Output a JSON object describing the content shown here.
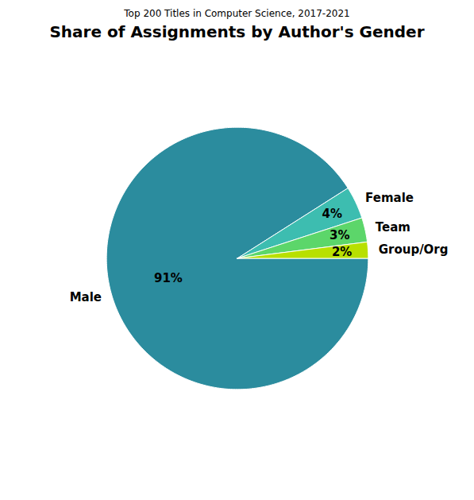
{
  "chart_data": {
    "type": "pie",
    "title": "Share of Assignments by Author's Gender",
    "subtitle": "Top 200 Titles in Computer Science, 2017-2021",
    "categories": [
      "Male",
      "Female",
      "Team",
      "Group/Org"
    ],
    "values": [
      91,
      4,
      3,
      2
    ],
    "value_labels": [
      "91%",
      "4%",
      "3%",
      "2%"
    ],
    "colors": [
      "#2b8c9e",
      "#3dbdb0",
      "#5cd66a",
      "#b8e000"
    ],
    "data_labels": true
  }
}
